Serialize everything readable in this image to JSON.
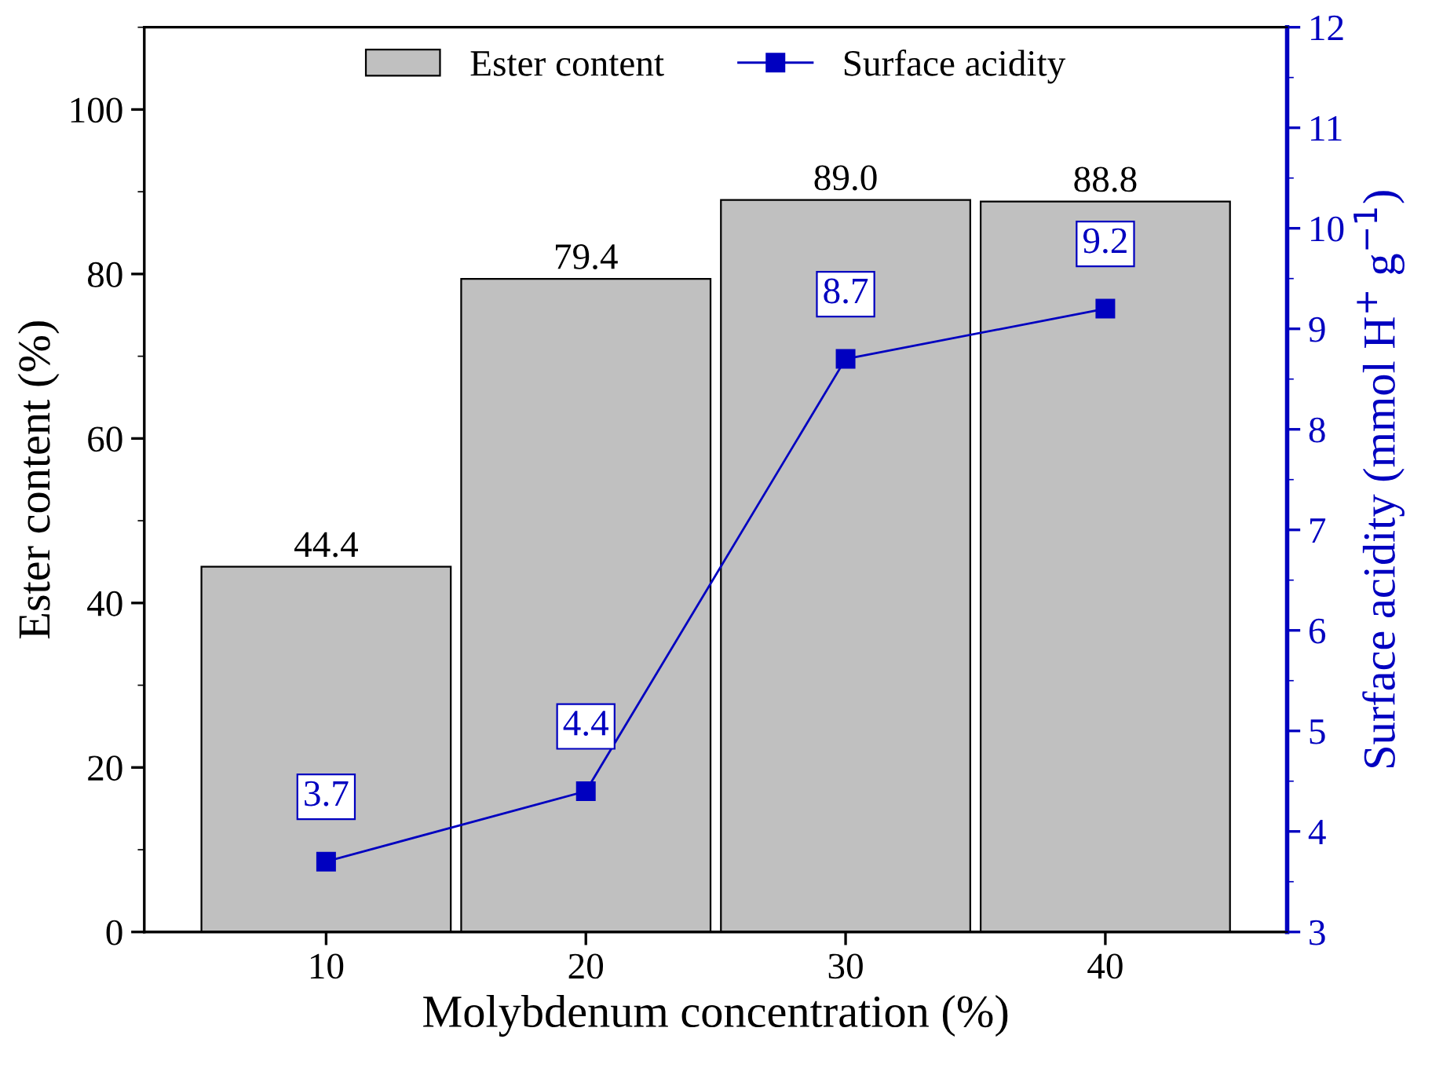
{
  "chart_data": {
    "type": "bar",
    "xlabel": "Molybdenum concentration (%)",
    "ylabel": "Ester content (%)",
    "y2label": "Surface acidity (mmol H$^{+}$ g$^{−1}$)",
    "categories": [
      "10",
      "20",
      "30",
      "40"
    ],
    "series": [
      {
        "name": "Ester content",
        "color": "#c0c0c0",
        "values": [
          44.4,
          79.4,
          89.0,
          88.8
        ],
        "value_labels": [
          "44.4",
          "79.4",
          "89.0",
          "88.8"
        ]
      },
      {
        "name": "Surface acidity",
        "type": "line",
        "axis": "y2",
        "color": "#0000c0",
        "values": [
          3.7,
          4.4,
          8.7,
          9.2
        ],
        "value_labels": [
          "3.7",
          "4.4",
          "8.7",
          "9.2"
        ]
      }
    ],
    "ylim": [
      0,
      110
    ],
    "yticks": [
      0,
      20,
      40,
      60,
      80,
      100
    ],
    "y2lim": [
      3,
      12
    ],
    "y2ticks": [
      3,
      4,
      5,
      6,
      7,
      8,
      9,
      10,
      11,
      12
    ],
    "marker": "square",
    "line_style": "solid",
    "legend": "top",
    "grid": false
  }
}
